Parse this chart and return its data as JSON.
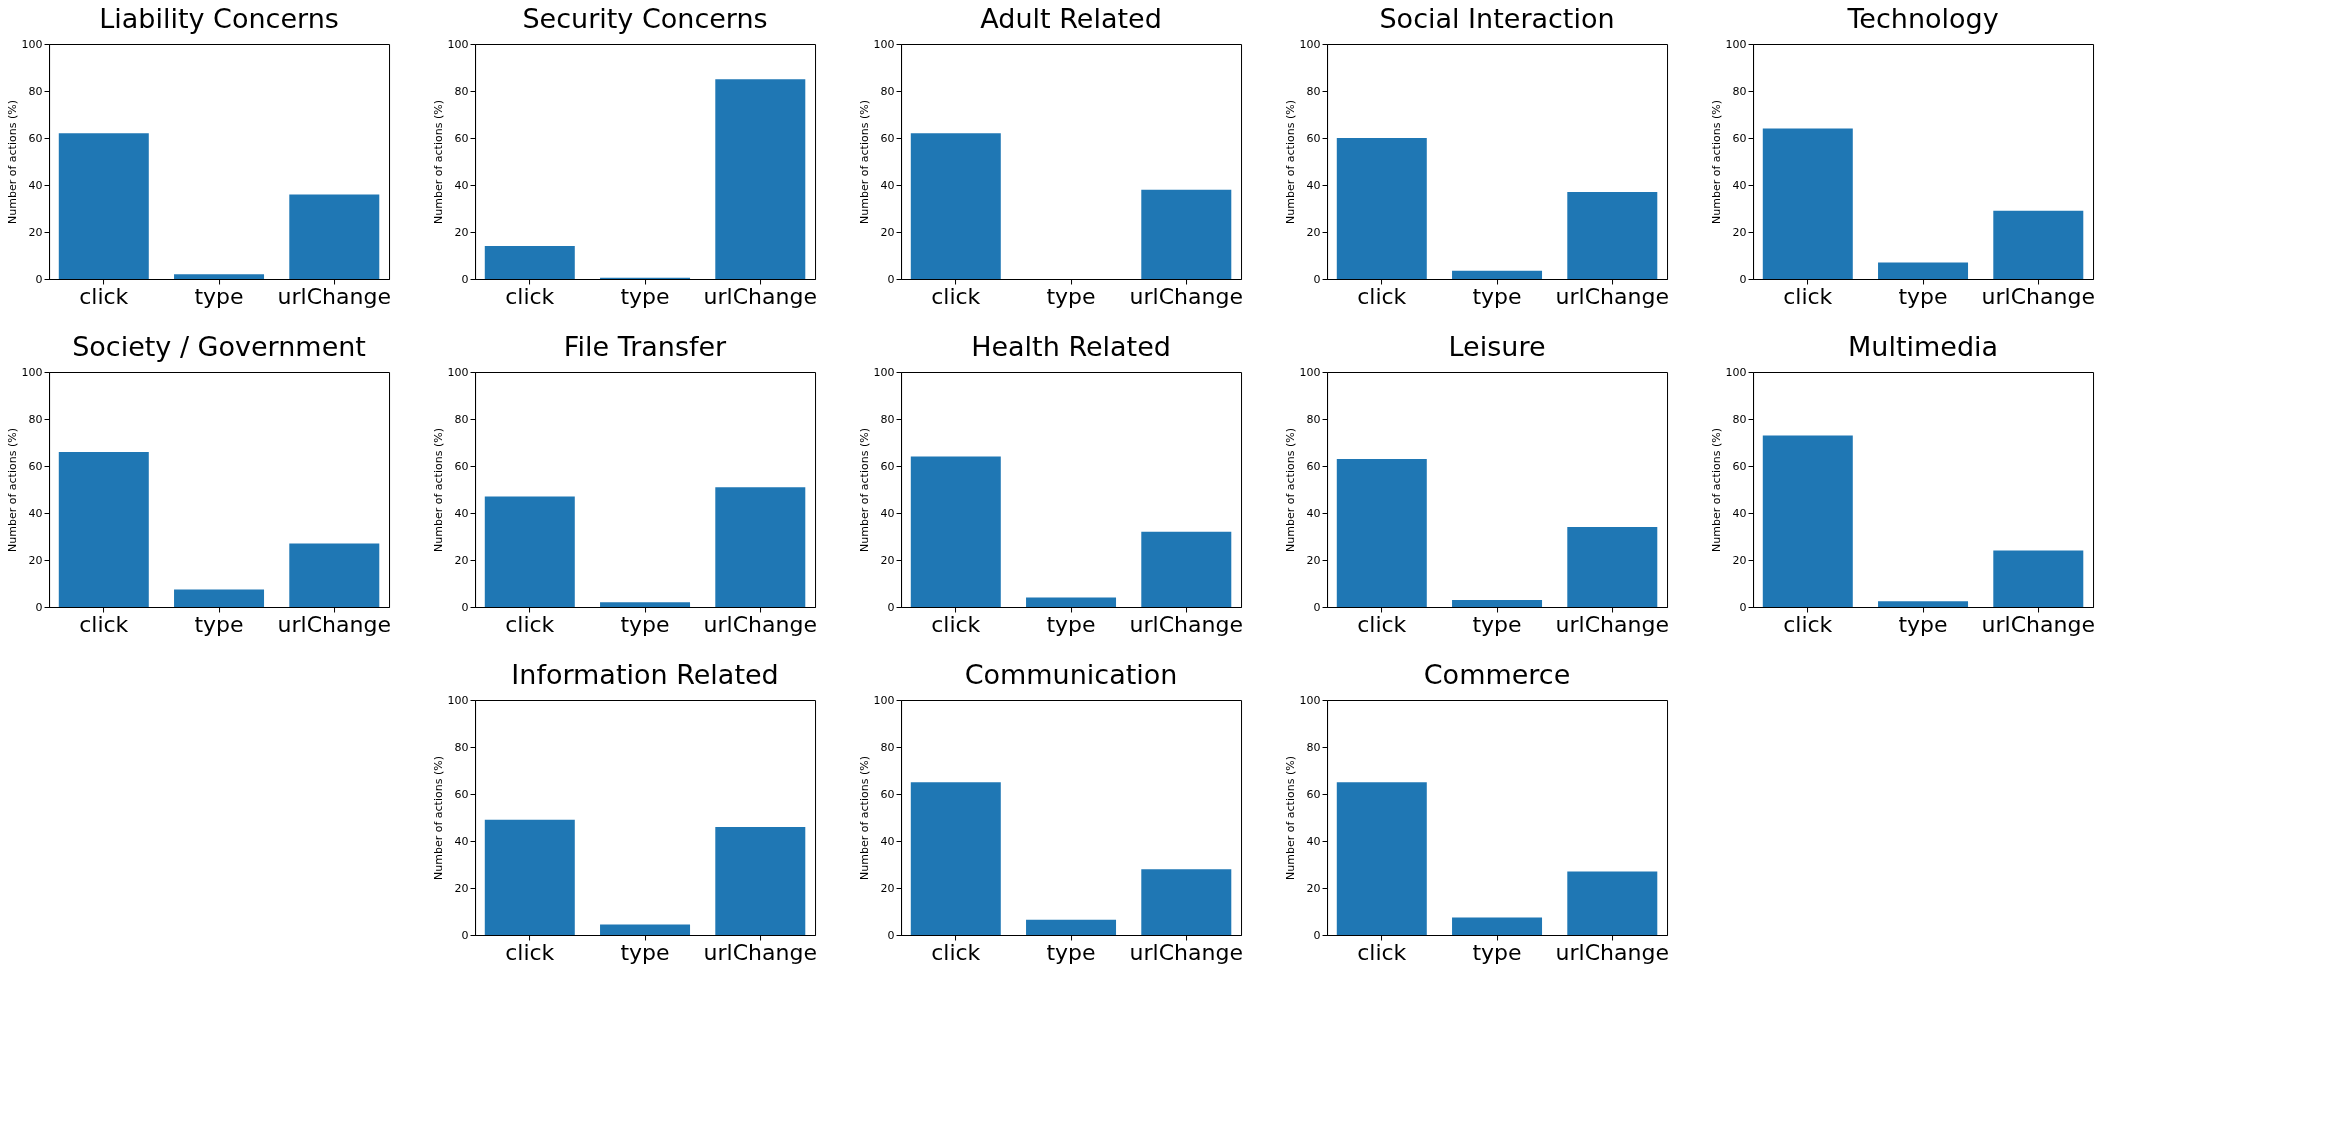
{
  "chart_data": [
    {
      "type": "bar",
      "title": "Liability Concerns",
      "categories": [
        "click",
        "type",
        "urlChange"
      ],
      "values": [
        62,
        2,
        36
      ],
      "color": "#1f77b4",
      "ylabel": "Number of actions (%)",
      "ylim": [
        0,
        100
      ],
      "yticks": [
        0,
        20,
        40,
        60,
        80,
        100
      ],
      "grid": false
    },
    {
      "type": "bar",
      "title": "Security Concerns",
      "categories": [
        "click",
        "type",
        "urlChange"
      ],
      "values": [
        14,
        0.5,
        85
      ],
      "color": "#1f77b4",
      "ylabel": "Number of actions (%)",
      "ylim": [
        0,
        100
      ],
      "yticks": [
        0,
        20,
        40,
        60,
        80,
        100
      ],
      "grid": false
    },
    {
      "type": "bar",
      "title": "Adult Related",
      "categories": [
        "click",
        "type",
        "urlChange"
      ],
      "values": [
        62,
        0,
        38
      ],
      "color": "#1f77b4",
      "ylabel": "Number of actions (%)",
      "ylim": [
        0,
        100
      ],
      "yticks": [
        0,
        20,
        40,
        60,
        80,
        100
      ],
      "grid": false
    },
    {
      "type": "bar",
      "title": "Social Interaction",
      "categories": [
        "click",
        "type",
        "urlChange"
      ],
      "values": [
        60,
        3.5,
        37
      ],
      "color": "#1f77b4",
      "ylabel": "Number of actions (%)",
      "ylim": [
        0,
        100
      ],
      "yticks": [
        0,
        20,
        40,
        60,
        80,
        100
      ],
      "grid": false
    },
    {
      "type": "bar",
      "title": "Technology",
      "categories": [
        "click",
        "type",
        "urlChange"
      ],
      "values": [
        64,
        7,
        29
      ],
      "color": "#1f77b4",
      "ylabel": "Number of actions (%)",
      "ylim": [
        0,
        100
      ],
      "yticks": [
        0,
        20,
        40,
        60,
        80,
        100
      ],
      "grid": false
    },
    {
      "type": "bar",
      "title": "Society / Government",
      "categories": [
        "click",
        "type",
        "urlChange"
      ],
      "values": [
        66,
        7.5,
        27
      ],
      "color": "#1f77b4",
      "ylabel": "Number of actions (%)",
      "ylim": [
        0,
        100
      ],
      "yticks": [
        0,
        20,
        40,
        60,
        80,
        100
      ],
      "grid": false
    },
    {
      "type": "bar",
      "title": "File Transfer",
      "categories": [
        "click",
        "type",
        "urlChange"
      ],
      "values": [
        47,
        2,
        51
      ],
      "color": "#1f77b4",
      "ylabel": "Number of actions (%)",
      "ylim": [
        0,
        100
      ],
      "yticks": [
        0,
        20,
        40,
        60,
        80,
        100
      ],
      "grid": false
    },
    {
      "type": "bar",
      "title": "Health Related",
      "categories": [
        "click",
        "type",
        "urlChange"
      ],
      "values": [
        64,
        4,
        32
      ],
      "color": "#1f77b4",
      "ylabel": "Number of actions (%)",
      "ylim": [
        0,
        100
      ],
      "yticks": [
        0,
        20,
        40,
        60,
        80,
        100
      ],
      "grid": false
    },
    {
      "type": "bar",
      "title": "Leisure",
      "categories": [
        "click",
        "type",
        "urlChange"
      ],
      "values": [
        63,
        3,
        34
      ],
      "color": "#1f77b4",
      "ylabel": "Number of actions (%)",
      "ylim": [
        0,
        100
      ],
      "yticks": [
        0,
        20,
        40,
        60,
        80,
        100
      ],
      "grid": false
    },
    {
      "type": "bar",
      "title": "Multimedia",
      "categories": [
        "click",
        "type",
        "urlChange"
      ],
      "values": [
        73,
        2.5,
        24
      ],
      "color": "#1f77b4",
      "ylabel": "Number of actions (%)",
      "ylim": [
        0,
        100
      ],
      "yticks": [
        0,
        20,
        40,
        60,
        80,
        100
      ],
      "grid": false
    },
    {
      "type": "bar",
      "title": "Information Related",
      "categories": [
        "click",
        "type",
        "urlChange"
      ],
      "values": [
        49,
        4.5,
        46
      ],
      "color": "#1f77b4",
      "ylabel": "Number of actions (%)",
      "ylim": [
        0,
        100
      ],
      "yticks": [
        0,
        20,
        40,
        60,
        80,
        100
      ],
      "grid": false
    },
    {
      "type": "bar",
      "title": "Communication",
      "categories": [
        "click",
        "type",
        "urlChange"
      ],
      "values": [
        65,
        6.5,
        28
      ],
      "color": "#1f77b4",
      "ylabel": "Number of actions (%)",
      "ylim": [
        0,
        100
      ],
      "yticks": [
        0,
        20,
        40,
        60,
        80,
        100
      ],
      "grid": false
    },
    {
      "type": "bar",
      "title": "Commerce",
      "categories": [
        "click",
        "type",
        "urlChange"
      ],
      "values": [
        65,
        7.5,
        27
      ],
      "color": "#1f77b4",
      "ylabel": "Number of actions (%)",
      "ylim": [
        0,
        100
      ],
      "yticks": [
        0,
        20,
        40,
        60,
        80,
        100
      ],
      "grid": false
    }
  ]
}
